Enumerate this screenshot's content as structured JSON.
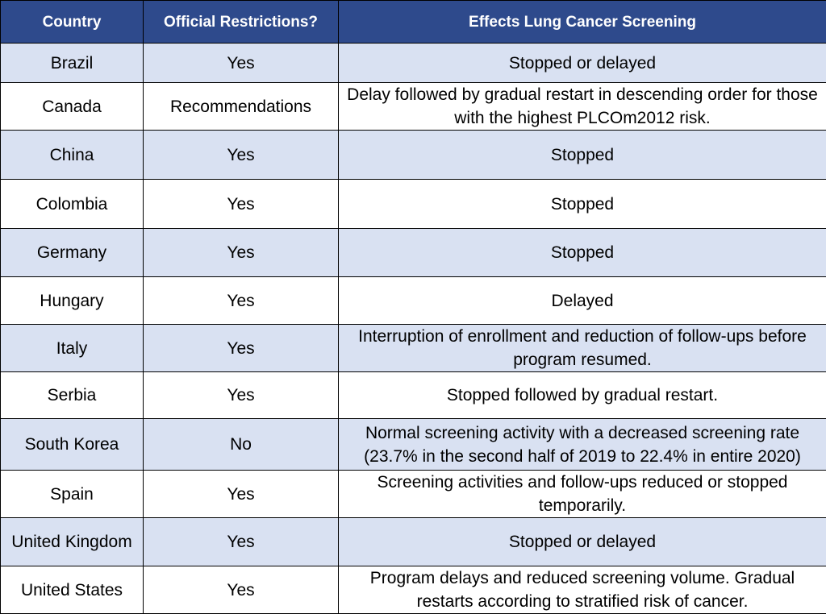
{
  "table": {
    "headers": [
      "Country",
      "Official Restrictions?",
      "Effects Lung Cancer Screening"
    ],
    "rows": [
      {
        "country": "Brazil",
        "restrictions": "Yes",
        "effects": "Stopped or delayed"
      },
      {
        "country": "Canada",
        "restrictions": "Recommendations",
        "effects": "Delay followed by gradual restart in descending order for those with the highest PLCOm2012 risk."
      },
      {
        "country": "China",
        "restrictions": "Yes",
        "effects": "Stopped"
      },
      {
        "country": "Colombia",
        "restrictions": "Yes",
        "effects": "Stopped"
      },
      {
        "country": "Germany",
        "restrictions": "Yes",
        "effects": "Stopped"
      },
      {
        "country": "Hungary",
        "restrictions": "Yes",
        "effects": "Delayed"
      },
      {
        "country": "Italy",
        "restrictions": "Yes",
        "effects": "Interruption of enrollment and reduction of follow-ups before program resumed."
      },
      {
        "country": "Serbia",
        "restrictions": "Yes",
        "effects": "Stopped followed by gradual restart."
      },
      {
        "country": "South Korea",
        "restrictions": "No",
        "effects": "Normal screening activity with a decreased screening rate (23.7% in the second half of 2019 to 22.4% in entire 2020)"
      },
      {
        "country": "Spain",
        "restrictions": "Yes",
        "effects": "Screening activities and follow-ups reduced or stopped temporarily."
      },
      {
        "country": "United Kingdom",
        "restrictions": "Yes",
        "effects": "Stopped or delayed"
      },
      {
        "country": "United States",
        "restrictions": "Yes",
        "effects": "Program delays and reduced screening volume. Gradual restarts according to stratified risk of cancer."
      }
    ]
  },
  "colors": {
    "header_bg": "#2e4a8c",
    "header_text": "#ffffff",
    "row_alt_bg": "#d9e1f2",
    "row_bg": "#ffffff",
    "border": "#000000"
  }
}
